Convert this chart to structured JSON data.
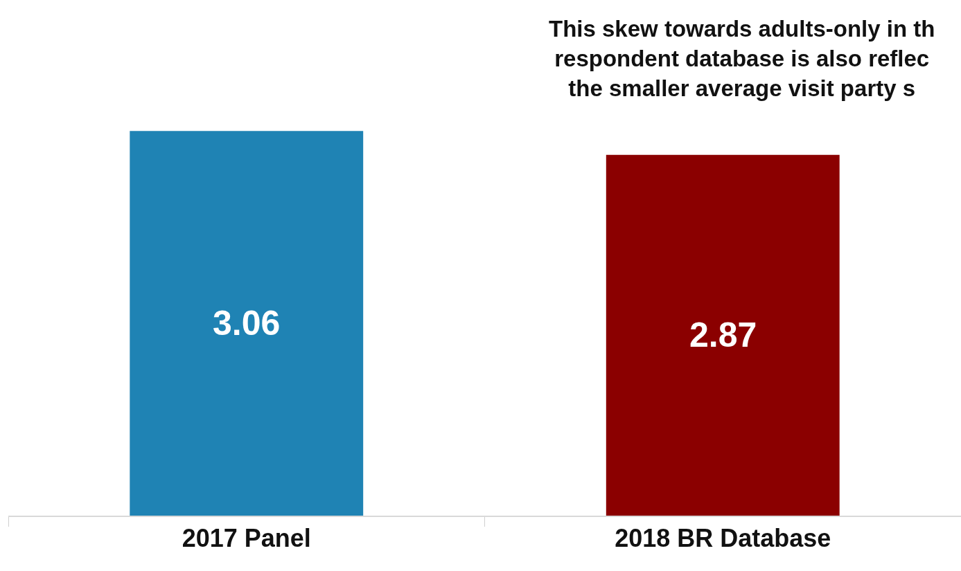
{
  "chart_data": {
    "type": "bar",
    "categories": [
      "2017 Panel",
      "2018 BR Database"
    ],
    "values": [
      3.06,
      2.87
    ],
    "colors": [
      "#1f83b4",
      "#8b0000"
    ],
    "data_labels": true,
    "annotations": [
      "This skew towards adults-only in th\nrespondent database is also reflec\nthe smaller average visit party s"
    ]
  }
}
